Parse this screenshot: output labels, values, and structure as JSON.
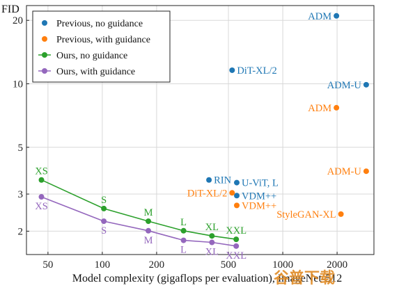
{
  "colors": {
    "prev_no_guidance": "#1f77b4",
    "prev_with_guidance": "#ff7f0e",
    "ours_no_guidance": "#2ca02c",
    "ours_with_guidance": "#9467bd"
  },
  "chart_data": {
    "type": "scatter",
    "title": "",
    "xlabel": "Model complexity (gigaflops per evaluation), ImageNet-512",
    "ylabel": "FID",
    "xscale": "log",
    "yscale": "log",
    "xlim": [
      38,
      3200
    ],
    "ylim": [
      1.55,
      23.5
    ],
    "xticks": [
      50,
      100,
      200,
      500,
      1000,
      2000
    ],
    "yticks": [
      2,
      3,
      5,
      10,
      20
    ],
    "grid": true,
    "legend_position": "top-left",
    "series": [
      {
        "name": "Previous, no guidance",
        "color_key": "prev_no_guidance",
        "line": false,
        "points": [
          {
            "x": 1983,
            "y": 21.0,
            "label": "ADM",
            "label_side": "left"
          },
          {
            "x": 524,
            "y": 11.6,
            "label": "DiT-XL/2",
            "label_side": "right"
          },
          {
            "x": 2900,
            "y": 9.9,
            "label": "ADM-U",
            "label_side": "left"
          },
          {
            "x": 390,
            "y": 3.5,
            "label": "RIN",
            "label_side": "right"
          },
          {
            "x": 556,
            "y": 3.4,
            "label": "U-ViT, L",
            "label_side": "right"
          },
          {
            "x": 556,
            "y": 2.95,
            "label": "VDM++",
            "label_side": "right"
          }
        ]
      },
      {
        "name": "Previous, with guidance",
        "color_key": "prev_with_guidance",
        "line": false,
        "points": [
          {
            "x": 1983,
            "y": 7.7,
            "label": "ADM",
            "label_side": "left"
          },
          {
            "x": 2900,
            "y": 3.85,
            "label": "ADM-U",
            "label_side": "left"
          },
          {
            "x": 524,
            "y": 3.04,
            "label": "DiT-XL/2",
            "label_side": "left"
          },
          {
            "x": 556,
            "y": 2.65,
            "label": "VDM++",
            "label_side": "right"
          },
          {
            "x": 2100,
            "y": 2.41,
            "label": "StyleGAN-XL",
            "label_side": "left"
          }
        ]
      },
      {
        "name": "Ours, no guidance",
        "color_key": "ours_no_guidance",
        "line": true,
        "points": [
          {
            "x": 46,
            "y": 3.5,
            "label": "XS",
            "label_side": "above"
          },
          {
            "x": 102,
            "y": 2.56,
            "label": "S",
            "label_side": "above"
          },
          {
            "x": 180,
            "y": 2.23,
            "label": "M",
            "label_side": "above"
          },
          {
            "x": 282,
            "y": 2.01,
            "label": "L",
            "label_side": "above"
          },
          {
            "x": 405,
            "y": 1.9,
            "label": "XL",
            "label_side": "above"
          },
          {
            "x": 552,
            "y": 1.83,
            "label": "XXL",
            "label_side": "above"
          }
        ]
      },
      {
        "name": "Ours, with guidance",
        "color_key": "ours_with_guidance",
        "line": true,
        "points": [
          {
            "x": 46,
            "y": 2.91,
            "label": "XS",
            "label_side": "below"
          },
          {
            "x": 102,
            "y": 2.23,
            "label": "S",
            "label_side": "below"
          },
          {
            "x": 180,
            "y": 2.01,
            "label": "M",
            "label_side": "below"
          },
          {
            "x": 282,
            "y": 1.81,
            "label": "L",
            "label_side": "below"
          },
          {
            "x": 405,
            "y": 1.77,
            "label": "XL",
            "label_side": "below"
          },
          {
            "x": 552,
            "y": 1.7,
            "label": "XXL",
            "label_side": "below"
          }
        ]
      }
    ]
  },
  "watermark": "谷普下载"
}
